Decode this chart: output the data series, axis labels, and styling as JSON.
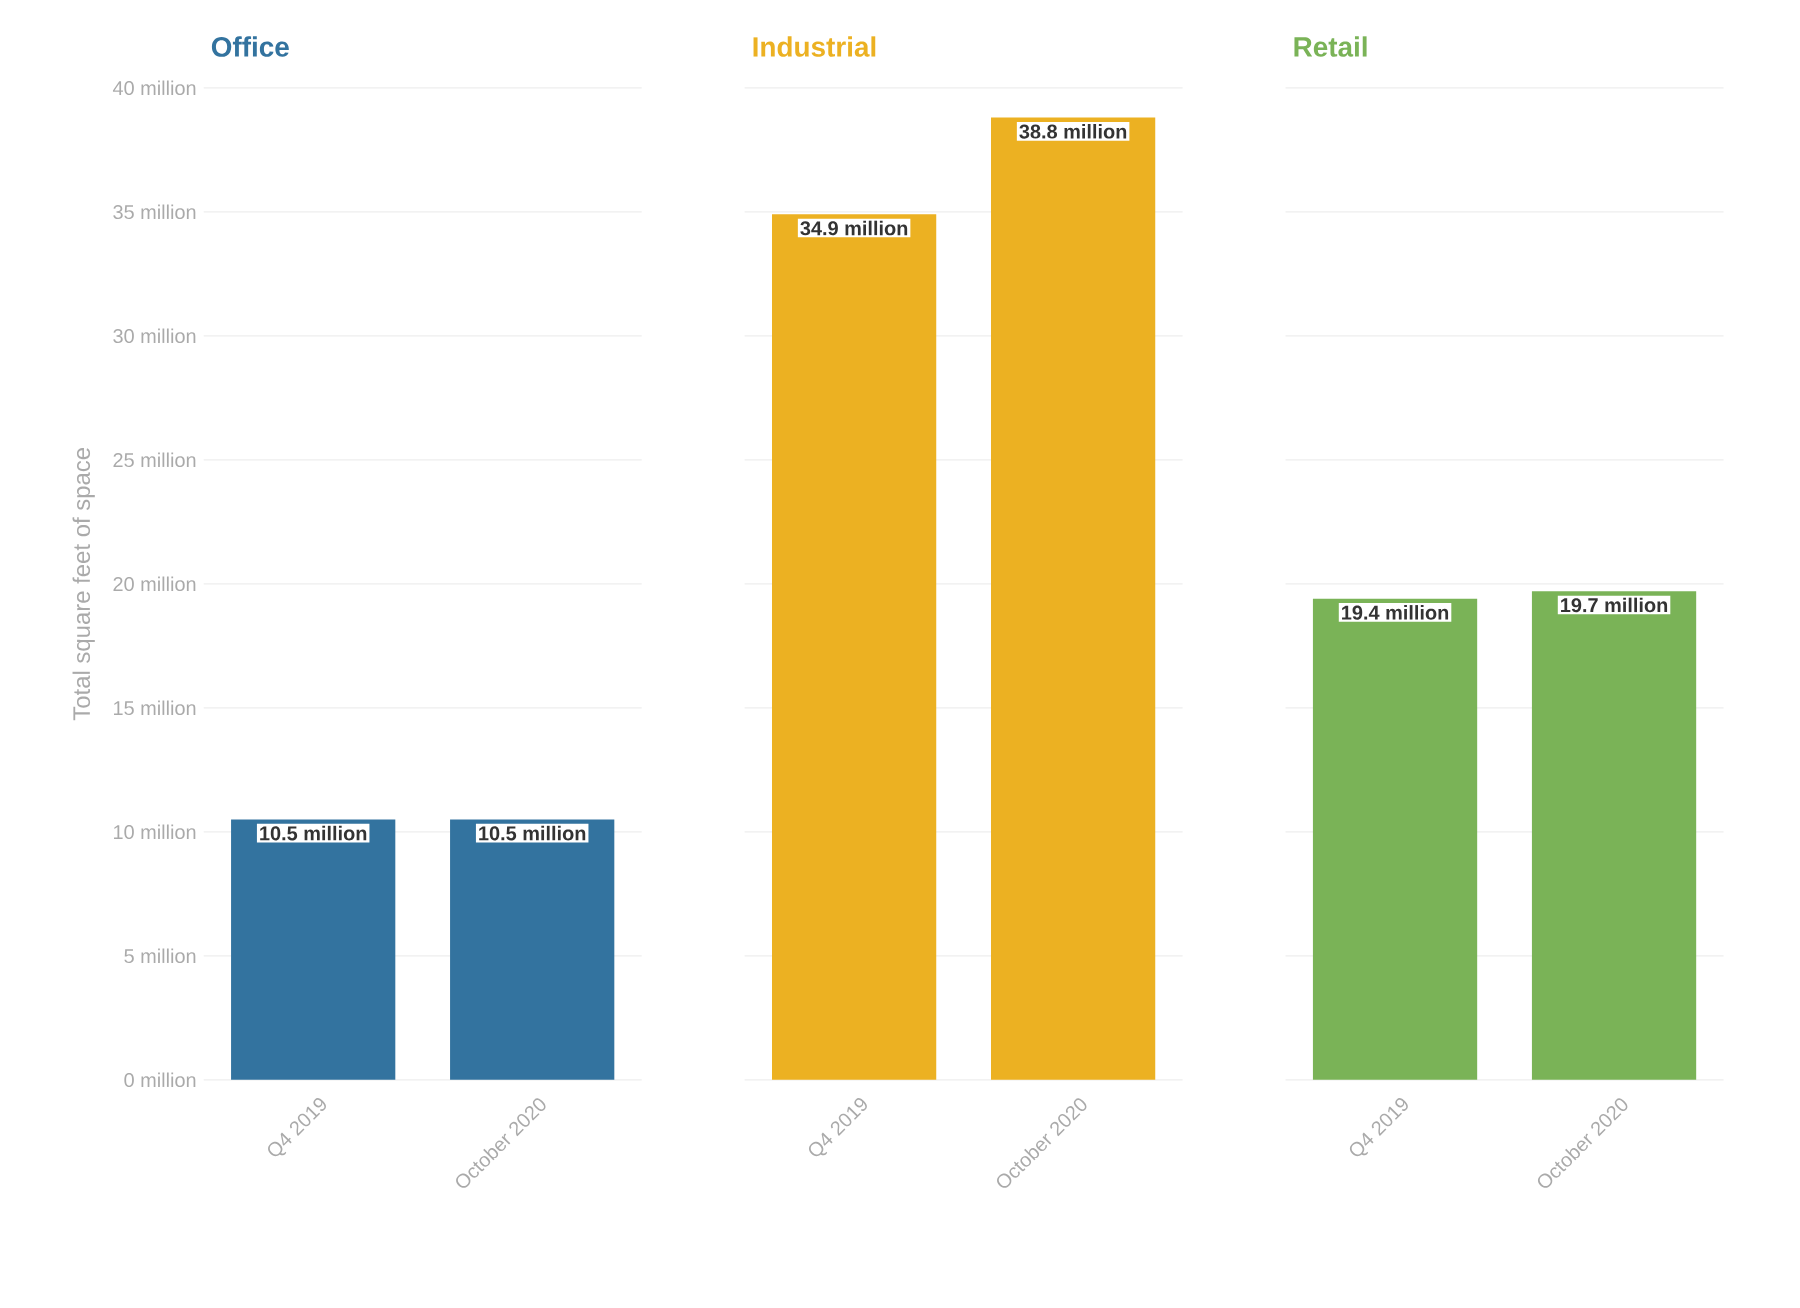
{
  "chart_data": [
    {
      "type": "bar",
      "title": "Office",
      "ylabel": "Total square feet of space",
      "categories": [
        "Q4 2019",
        "October 2020"
      ],
      "values": [
        10.5,
        10.5
      ],
      "value_labels": [
        "10.5 million",
        "10.5 million"
      ],
      "color": "#33739f",
      "ylim": [
        0,
        40
      ],
      "yticks": [
        {
          "value": 0,
          "label": "0 million"
        },
        {
          "value": 5,
          "label": "5 million"
        },
        {
          "value": 10,
          "label": "10 million"
        },
        {
          "value": 15,
          "label": "15 million"
        },
        {
          "value": 20,
          "label": "20 million"
        },
        {
          "value": 25,
          "label": "25 million"
        },
        {
          "value": 30,
          "label": "30 million"
        },
        {
          "value": 35,
          "label": "35 million"
        },
        {
          "value": 40,
          "label": "40 million"
        }
      ],
      "grid": "y"
    },
    {
      "type": "bar",
      "title": "Industrial",
      "categories": [
        "Q4 2019",
        "October 2020"
      ],
      "values": [
        34.9,
        38.8
      ],
      "value_labels": [
        "34.9 million",
        "38.8 million"
      ],
      "color": "#ecb122",
      "ylim": [
        0,
        40
      ],
      "yticks": [
        0,
        5,
        10,
        15,
        20,
        25,
        30,
        35,
        40
      ],
      "grid": "y",
      "tick_labels": "x"
    },
    {
      "type": "bar",
      "title": "Retail",
      "categories": [
        "Q4 2019",
        "October 2020"
      ],
      "values": [
        19.4,
        19.7
      ],
      "value_labels": [
        "19.4 million",
        "19.7 million"
      ],
      "color": "#7ab357",
      "ylim": [
        0,
        40
      ],
      "yticks": [
        0,
        5,
        10,
        15,
        20,
        25,
        30,
        35,
        40
      ],
      "grid": "y",
      "tick_labels": "x"
    }
  ]
}
